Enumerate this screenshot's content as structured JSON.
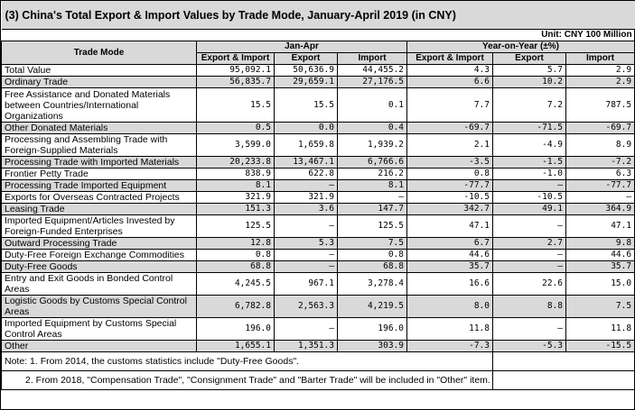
{
  "title": "(3) China's Total Export & Import Values by Trade Mode, January-April 2019 (in CNY)",
  "unit": "Unit: CNY 100 Million",
  "headers": {
    "trade_mode": "Trade Mode",
    "jan_apr": "Jan-Apr",
    "yoy": "Year-on-Year (±%)",
    "export_import": "Export & Import",
    "export": "Export",
    "import": "Import"
  },
  "rows": [
    {
      "label": "Total Value",
      "ei": "95,092.1",
      "ex": "50,636.9",
      "im": "44,455.2",
      "yei": "4.3",
      "yex": "5.7",
      "yim": "2.9"
    },
    {
      "label": "Ordinary Trade",
      "ei": "56,835.7",
      "ex": "29,659.1",
      "im": "27,176.5",
      "yei": "6.6",
      "yex": "10.2",
      "yim": "2.9"
    },
    {
      "label": "Free Assistance and Donated Materials between Countries/International Organizations",
      "ei": "15.5",
      "ex": "15.5",
      "im": "0.1",
      "yei": "7.7",
      "yex": "7.2",
      "yim": "787.5"
    },
    {
      "label": "Other Donated Materials",
      "ei": "0.5",
      "ex": "0.0",
      "im": "0.4",
      "yei": "-69.7",
      "yex": "-71.5",
      "yim": "-69.7"
    },
    {
      "label": "Processing and Assembling Trade with Foreign-Supplied Materials",
      "ei": "3,599.0",
      "ex": "1,659.8",
      "im": "1,939.2",
      "yei": "2.1",
      "yex": "-4.9",
      "yim": "8.9"
    },
    {
      "label": "Processing Trade with Imported Materials",
      "ei": "20,233.8",
      "ex": "13,467.1",
      "im": "6,766.6",
      "yei": "-3.5",
      "yex": "-1.5",
      "yim": "-7.2"
    },
    {
      "label": "Frontier Petty Trade",
      "ei": "838.9",
      "ex": "622.8",
      "im": "216.2",
      "yei": "0.8",
      "yex": "-1.0",
      "yim": "6.3"
    },
    {
      "label": "Processing Trade Imported Equipment",
      "ei": "8.1",
      "ex": "–",
      "im": "8.1",
      "yei": "-77.7",
      "yex": "–",
      "yim": "-77.7"
    },
    {
      "label": "Exports for Overseas Contracted Projects",
      "ei": "321.9",
      "ex": "321.9",
      "im": "–",
      "yei": "-10.5",
      "yex": "-10.5",
      "yim": "–"
    },
    {
      "label": "Leasing Trade",
      "ei": "151.3",
      "ex": "3.6",
      "im": "147.7",
      "yei": "342.7",
      "yex": "49.1",
      "yim": "364.9"
    },
    {
      "label": "Imported Equipment/Articles Invested by Foreign-Funded Enterprises",
      "ei": "125.5",
      "ex": "–",
      "im": "125.5",
      "yei": "47.1",
      "yex": "–",
      "yim": "47.1"
    },
    {
      "label": "Outward Processing Trade",
      "ei": "12.8",
      "ex": "5.3",
      "im": "7.5",
      "yei": "6.7",
      "yex": "2.7",
      "yim": "9.8"
    },
    {
      "label": "Duty-Free Foreign Exchange Commodities",
      "ei": "0.8",
      "ex": "–",
      "im": "0.8",
      "yei": "44.6",
      "yex": "–",
      "yim": "44.6"
    },
    {
      "label": "Duty-Free Goods",
      "ei": "68.8",
      "ex": "–",
      "im": "68.8",
      "yei": "35.7",
      "yex": "–",
      "yim": "35.7"
    },
    {
      "label": "Entry and Exit Goods in Bonded Control Areas",
      "ei": "4,245.5",
      "ex": "967.1",
      "im": "3,278.4",
      "yei": "16.6",
      "yex": "22.6",
      "yim": "15.0"
    },
    {
      "label": "Logistic Goods by Customs Special Control Areas",
      "ei": "6,782.8",
      "ex": "2,563.3",
      "im": "4,219.5",
      "yei": "8.0",
      "yex": "8.8",
      "yim": "7.5"
    },
    {
      "label": "Imported Equipment by Customs Special Control Areas",
      "ei": "196.0",
      "ex": "–",
      "im": "196.0",
      "yei": "11.8",
      "yex": "–",
      "yim": "11.8"
    },
    {
      "label": "Other",
      "ei": "1,655.1",
      "ex": "1,351.3",
      "im": "303.9",
      "yei": "-7.3",
      "yex": "-5.3",
      "yim": "-15.5"
    }
  ],
  "notes": [
    "Note: 1. From 2014, the customs statistics include \"Duty-Free Goods\".",
    "2. From 2018, \"Compensation Trade\", \"Consignment Trade\" and \"Barter Trade\" will be included in \"Other\" item."
  ]
}
